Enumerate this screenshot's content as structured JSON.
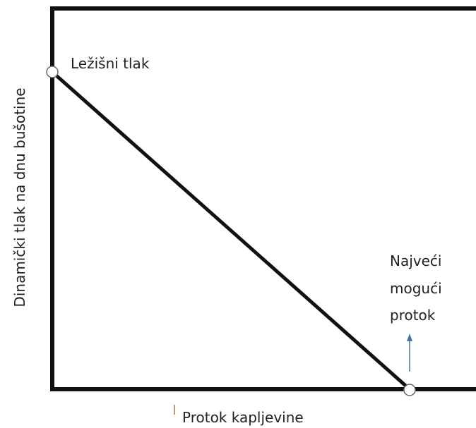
{
  "diagram": {
    "top_point_label": "Ležišni tlak",
    "bottom_point_label": [
      "Najveći",
      "mogući",
      "protok"
    ],
    "y_axis_label": "Dinamički tlak na dnu bušotine",
    "x_axis_label": "Protok kapljevine"
  }
}
